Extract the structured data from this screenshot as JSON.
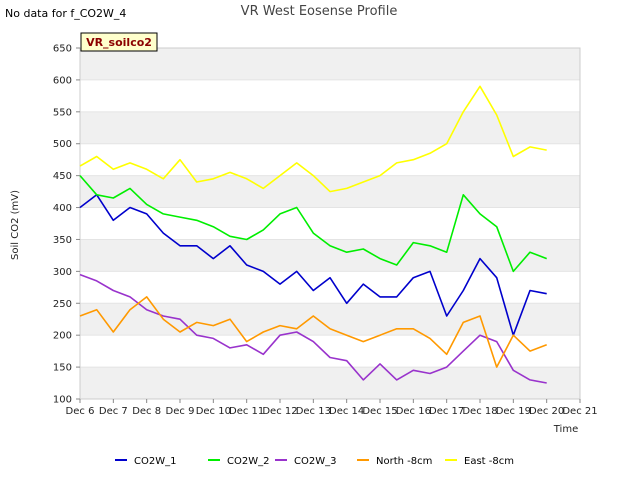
{
  "chart_data": {
    "type": "line",
    "title": "VR West Eosense Profile",
    "note": "No data for f_CO2W_4",
    "site_label": "VR_soilco2",
    "xlabel": "Time",
    "ylabel": "Soil CO2 (mV)",
    "xlim": [
      6,
      21
    ],
    "ylim": [
      100,
      650
    ],
    "x_ticks": [
      6,
      7,
      8,
      9,
      10,
      11,
      12,
      13,
      14,
      15,
      16,
      17,
      18,
      19,
      20,
      21
    ],
    "x_tick_labels": [
      "Dec 6",
      "Dec 7",
      "Dec 8",
      "Dec 9",
      "Dec 10",
      "Dec 11",
      "Dec 12",
      "Dec 13",
      "Dec 14",
      "Dec 15",
      "Dec 16",
      "Dec 17",
      "Dec 18",
      "Dec 19",
      "Dec 20",
      "Dec 21"
    ],
    "y_ticks": [
      100,
      150,
      200,
      250,
      300,
      350,
      400,
      450,
      500,
      550,
      600,
      650
    ],
    "grid": "horizontal bands",
    "legend_position": "bottom",
    "x": [
      6.0,
      6.5,
      7.0,
      7.5,
      8.0,
      8.5,
      9.0,
      9.5,
      10.0,
      10.5,
      11.0,
      11.5,
      12.0,
      12.5,
      13.0,
      13.5,
      14.0,
      14.5,
      15.0,
      15.5,
      16.0,
      16.5,
      17.0,
      17.5,
      18.0,
      18.5,
      19.0,
      19.5,
      20.0
    ],
    "series": [
      {
        "name": "CO2W_1",
        "color": "#0000cc",
        "values": [
          400,
          420,
          380,
          400,
          390,
          360,
          340,
          340,
          320,
          340,
          310,
          300,
          280,
          300,
          270,
          290,
          250,
          280,
          260,
          260,
          290,
          300,
          230,
          270,
          320,
          290,
          200,
          270,
          265
        ]
      },
      {
        "name": "CO2W_2",
        "color": "#00ee00",
        "values": [
          450,
          420,
          415,
          430,
          405,
          390,
          385,
          380,
          370,
          355,
          350,
          365,
          390,
          400,
          360,
          340,
          330,
          335,
          320,
          310,
          345,
          340,
          330,
          420,
          390,
          370,
          300,
          330,
          320
        ]
      },
      {
        "name": "CO2W_3",
        "color": "#9933cc",
        "values": [
          295,
          285,
          270,
          260,
          240,
          230,
          225,
          200,
          195,
          180,
          185,
          170,
          200,
          205,
          190,
          165,
          160,
          130,
          155,
          130,
          145,
          140,
          150,
          175,
          200,
          190,
          145,
          130,
          125
        ]
      },
      {
        "name": "North -8cm",
        "color": "#ff9900",
        "values": [
          230,
          240,
          205,
          240,
          260,
          225,
          205,
          220,
          215,
          225,
          190,
          205,
          215,
          210,
          230,
          210,
          200,
          190,
          200,
          210,
          210,
          195,
          170,
          220,
          230,
          150,
          200,
          175,
          185
        ]
      },
      {
        "name": "East -8cm",
        "color": "#ffff00",
        "values": [
          465,
          480,
          460,
          470,
          460,
          445,
          475,
          440,
          445,
          455,
          445,
          430,
          450,
          470,
          450,
          425,
          430,
          440,
          450,
          470,
          475,
          485,
          500,
          550,
          590,
          545,
          480,
          495,
          490
        ]
      }
    ]
  }
}
